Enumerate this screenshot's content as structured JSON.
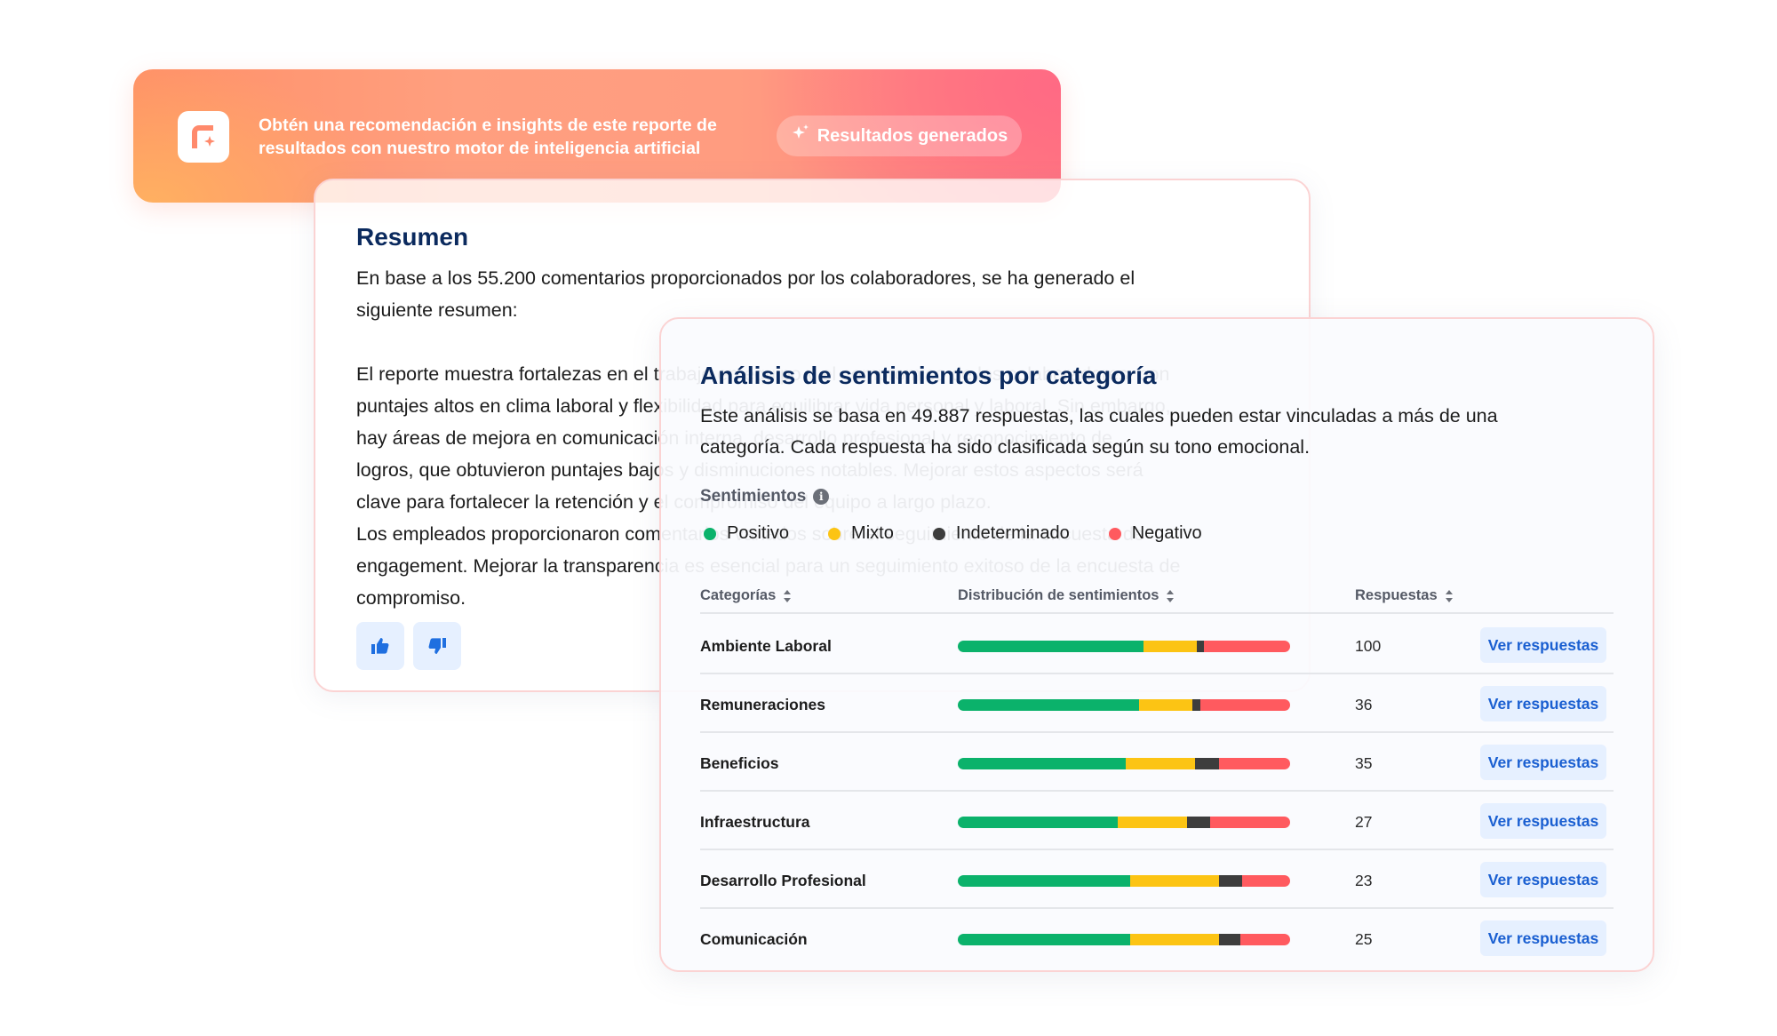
{
  "banner": {
    "logo_icon": "app-logo-sparkle-icon",
    "line1": "Obtén una recomendación e insights de este reporte de",
    "line2": "resultados con nuestro motor de inteligencia artificial",
    "button_label": "Resultados generados",
    "button_icon": "sparkle-icon"
  },
  "summary": {
    "title": "Resumen",
    "intro_line1": "En base a los 55.200 comentarios proporcionados por los colaboradores, se ha generado el",
    "intro_line2": "siguiente resumen:",
    "body_lines": [
      "El reporte muestra fortalezas en el trabajo en equipo y el compromiso de los colaboradores, con",
      "puntajes altos en clima laboral y flexibilidad para equilibrar vida personal y laboral. Sin embargo,",
      "hay áreas de mejora en comunicación interna, desarrollo profesional y reconocimiento de",
      "logros, que obtuvieron puntajes bajos y disminuciones notables. Mejorar estos aspectos será",
      "clave para fortalecer la retención y el compromiso del equipo a largo plazo.",
      "Los empleados proporcionaron comentarios variados sobre el seguimiento de la encuesta de",
      "engagement. Mejorar la transparencia es esencial para un seguimiento exitoso de la encuesta de",
      "compromiso."
    ],
    "thumbs_up_icon": "thumbs-up-icon",
    "thumbs_down_icon": "thumbs-down-icon"
  },
  "analysis": {
    "title": "Análisis de sentimientos por categoría",
    "desc_line1": "Este análisis se basa en 49.887 respuestas, las cuales pueden estar vinculadas a más de una",
    "desc_line2": "categoría. Cada respuesta ha sido clasificada según su tono emocional.",
    "sentiments_label": "Sentimientos",
    "info_icon": "info-icon",
    "legend": [
      {
        "label": "Positivo",
        "color": "#0bb26b"
      },
      {
        "label": "Mixto",
        "color": "#fcc414"
      },
      {
        "label": "Indeterminado",
        "color": "#3d3d3d"
      },
      {
        "label": "Negativo",
        "color": "#ff5a5f"
      }
    ],
    "columns": {
      "category": "Categorías",
      "distribution": "Distribución de sentimientos",
      "responses": "Respuestas"
    },
    "view_label": "Ver respuestas",
    "rows": [
      {
        "name": "Ambiente Laboral",
        "count": "100",
        "dist": [
          0.56,
          0.16,
          0.02,
          0.26
        ]
      },
      {
        "name": "Remuneraciones",
        "count": "36",
        "dist": [
          0.545,
          0.16,
          0.025,
          0.27
        ]
      },
      {
        "name": "Beneficios",
        "count": "35",
        "dist": [
          0.505,
          0.21,
          0.07,
          0.215
        ]
      },
      {
        "name": "Infraestructura",
        "count": "27",
        "dist": [
          0.48,
          0.21,
          0.07,
          0.24
        ]
      },
      {
        "name": "Desarrollo Profesional",
        "count": "23",
        "dist": [
          0.52,
          0.265,
          0.07,
          0.145
        ]
      },
      {
        "name": "Comunicación",
        "count": "25",
        "dist": [
          0.52,
          0.265,
          0.065,
          0.15
        ]
      }
    ]
  }
}
